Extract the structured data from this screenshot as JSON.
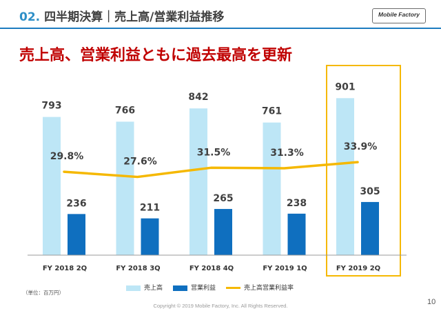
{
  "header": {
    "number": "02.",
    "title": "四半期決算｜売上高/営業利益推移",
    "logo_text": "Mobile Factory"
  },
  "headline": "売上高、営業利益ともに過去最高を更新",
  "unit_note": "（単位：百万円）",
  "copyright": "Copyright © 2019 Mobile Factory, Inc. All Rights Reserved.",
  "page_number": "10",
  "colors": {
    "revenue": "#bde6f6",
    "operating_income": "#0f6fbf",
    "margin_line": "#f5b800",
    "highlight_box": "#f5b800",
    "headline": "#c00000",
    "header_line": "#1b7bbf"
  },
  "chart_data": {
    "type": "bar",
    "categories": [
      "FY 2018 2Q",
      "FY 2018 3Q",
      "FY 2018 4Q",
      "FY 2019 1Q",
      "FY 2019 2Q"
    ],
    "series": [
      {
        "name": "売上高",
        "kind": "bar",
        "values": [
          793,
          766,
          842,
          761,
          901
        ],
        "labels": [
          "793",
          "766",
          "842",
          "761",
          "901"
        ]
      },
      {
        "name": "営業利益",
        "kind": "bar",
        "values": [
          236,
          211,
          265,
          238,
          305
        ],
        "labels": [
          "236",
          "211",
          "265",
          "238",
          "305"
        ]
      },
      {
        "name": "売上高営業利益率",
        "kind": "line",
        "values": [
          29.8,
          27.6,
          31.5,
          31.3,
          33.9
        ],
        "labels": [
          "29.8%",
          "27.6%",
          "31.5%",
          "31.3%",
          "33.9%"
        ]
      }
    ],
    "bar_ylim": [
      0,
      1000
    ],
    "line_ylim": [
      0,
      100
    ],
    "highlighted_category": "FY 2019 2Q",
    "legend_position": "bottom",
    "grid": false
  }
}
